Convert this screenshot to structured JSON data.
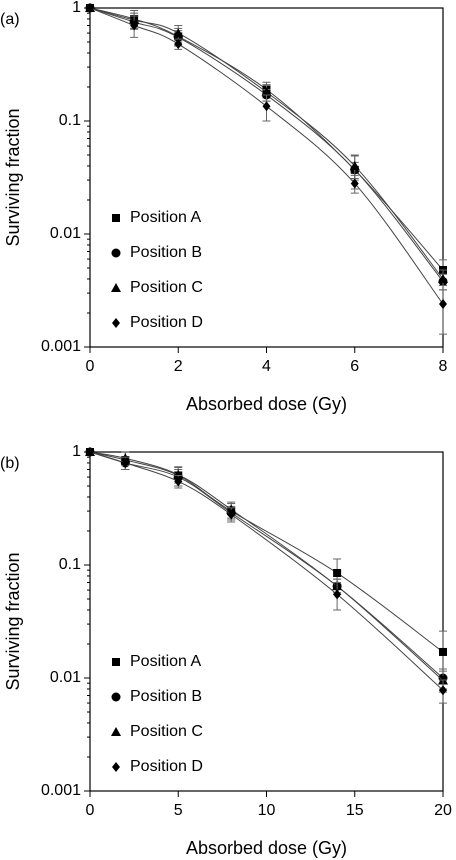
{
  "chart_data": [
    {
      "type": "scatter",
      "panel_label": "(a)",
      "x_label": "Absorbed dose (Gy)",
      "y_label": "Surviving fraction",
      "x": [
        0,
        1,
        2,
        4,
        6,
        8
      ],
      "xlim": [
        0,
        8
      ],
      "xticks": [
        0,
        2,
        4,
        6,
        8
      ],
      "ylim": [
        0.001,
        1
      ],
      "yticks": [
        0.001,
        0.01,
        0.1,
        1
      ],
      "y_log": true,
      "legend": "lower left",
      "series": [
        {
          "name": "Position A",
          "marker": "square",
          "color": "#000000",
          "values": [
            1,
            0.8,
            0.56,
            0.19,
            0.037,
            0.0048
          ],
          "errors": [
            0,
            0.15,
            0.1,
            0.03,
            0.012,
            0.0011
          ]
        },
        {
          "name": "Position B",
          "marker": "circle",
          "color": "#000000",
          "values": [
            1,
            0.75,
            0.55,
            0.17,
            0.037,
            0.0038
          ],
          "errors": [
            0,
            0.1,
            0.08,
            0.02,
            0.006,
            0.0006
          ]
        },
        {
          "name": "Position C",
          "marker": "triangle",
          "color": "#000000",
          "values": [
            1,
            0.78,
            0.6,
            0.18,
            0.04,
            0.004
          ],
          "errors": [
            0,
            0.12,
            0.1,
            0.03,
            0.01,
            0.0008
          ]
        },
        {
          "name": "Position D",
          "marker": "diamond",
          "color": "#000000",
          "values": [
            1,
            0.7,
            0.48,
            0.135,
            0.028,
            0.0024
          ],
          "errors": [
            0,
            0.15,
            0.05,
            0.035,
            0.005,
            0.0011
          ]
        }
      ]
    },
    {
      "type": "scatter",
      "panel_label": "(b)",
      "x_label": "Absorbed dose (Gy)",
      "y_label": "Surviving fraction",
      "x": [
        0,
        2,
        5,
        8,
        14,
        20
      ],
      "xlim": [
        0,
        20
      ],
      "xticks": [
        0,
        5,
        10,
        15,
        20
      ],
      "ylim": [
        0.001,
        1
      ],
      "yticks": [
        0.001,
        0.01,
        0.1,
        1
      ],
      "y_log": true,
      "legend": "lower left",
      "series": [
        {
          "name": "Position A",
          "marker": "square",
          "color": "#000000",
          "values": [
            1,
            0.85,
            0.62,
            0.3,
            0.085,
            0.017
          ],
          "errors": [
            0,
            0.15,
            0.12,
            0.05,
            0.028,
            0.009
          ]
        },
        {
          "name": "Position B",
          "marker": "circle",
          "color": "#000000",
          "values": [
            1,
            0.8,
            0.6,
            0.29,
            0.065,
            0.01
          ],
          "errors": [
            0,
            0.1,
            0.1,
            0.04,
            0.01,
            0.002
          ]
        },
        {
          "name": "Position C",
          "marker": "triangle",
          "color": "#000000",
          "values": [
            1,
            0.88,
            0.63,
            0.31,
            0.065,
            0.0095
          ],
          "errors": [
            0,
            0.12,
            0.1,
            0.05,
            0.01,
            0.002
          ]
        },
        {
          "name": "Position D",
          "marker": "diamond",
          "color": "#000000",
          "values": [
            1,
            0.8,
            0.55,
            0.28,
            0.055,
            0.0078
          ],
          "errors": [
            0,
            0.1,
            0.07,
            0.04,
            0.015,
            0.0018
          ]
        }
      ]
    }
  ]
}
